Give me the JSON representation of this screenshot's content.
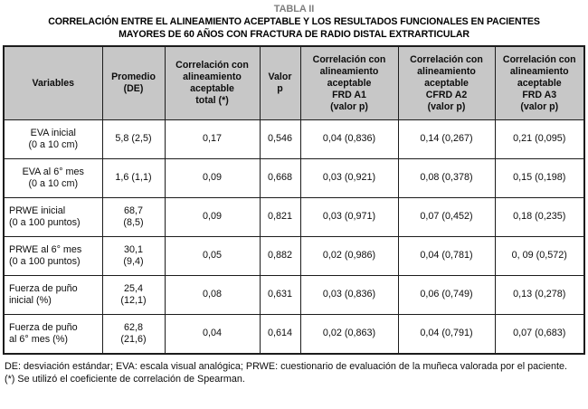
{
  "title": {
    "table_label": "TABLA II",
    "heading": "CORRELACIÓN ENTRE EL ALINEAMIENTO ACEPTABLE Y LOS RESULTADOS FUNCIONALES EN PACIENTES\nMAYORES DE 60 AÑOS CON FRACTURA DE RADIO DISTAL EXTRARTICULAR"
  },
  "colors": {
    "header_bg": "#c7c7c7",
    "border": "#1c1c1c",
    "title_gray": "#7f7f7f",
    "text": "#0d0d0d"
  },
  "table": {
    "headers": [
      "Variables",
      "Promedio\n(DE)",
      "Correlación con\nalineamiento\naceptable\ntotal (*)",
      "Valor\np",
      "Correlación con\nalineamiento\naceptable\nFRD A1\n(valor p)",
      "Correlación con\nalineamiento\naceptable\nCFRD A2\n(valor p)",
      "Correlación con\nalineamiento\naceptable\nFRD A3\n(valor p)"
    ],
    "rows": [
      {
        "align": "center",
        "cells": [
          "EVA inicial\n(0 a 10 cm)",
          "5,8 (2,5)",
          "0,17",
          "0,546",
          "0,04 (0,836)",
          "0,14 (0,267)",
          "0,21 (0,095)"
        ]
      },
      {
        "align": "center",
        "cells": [
          "EVA al 6° mes\n(0 a 10 cm)",
          "1,6 (1,1)",
          "0,09",
          "0,668",
          "0,03 (0,921)",
          "0,08 (0,378)",
          "0,15 (0,198)"
        ]
      },
      {
        "align": "left",
        "cells": [
          "PRWE inicial\n(0 a 100 puntos)",
          "68,7\n(8,5)",
          "0,09",
          "0,821",
          "0,03 (0,971)",
          "0,07 (0,452)",
          "0,18 (0,235)"
        ]
      },
      {
        "align": "left",
        "cells": [
          "PRWE al 6° mes\n(0 a 100 puntos)",
          "30,1\n(9,4)",
          "0,05",
          "0,882",
          "0,02 (0,986)",
          "0,04 (0,781)",
          "0, 09 (0,572)"
        ]
      },
      {
        "align": "left",
        "cells": [
          "Fuerza de puño\ninicial (%)",
          "25,4\n(12,1)",
          "0,08",
          "0,631",
          "0,03 (0,836)",
          "0,06 (0,749)",
          "0,13 (0,278)"
        ]
      },
      {
        "align": "left",
        "cells": [
          "Fuerza de puño\nal 6° mes (%)",
          "62,8\n(21,6)",
          "0,04",
          "0,614",
          "0,02 (0,863)",
          "0,04 (0,791)",
          "0,07 (0,683)"
        ]
      }
    ]
  },
  "footnotes": [
    "DE: desviación estándar; EVA: escala visual analógica; PRWE: cuestionario de evaluación de la muñeca valorada por el paciente.",
    "(*) Se utilizó el coeficiente de correlación de Spearman."
  ]
}
